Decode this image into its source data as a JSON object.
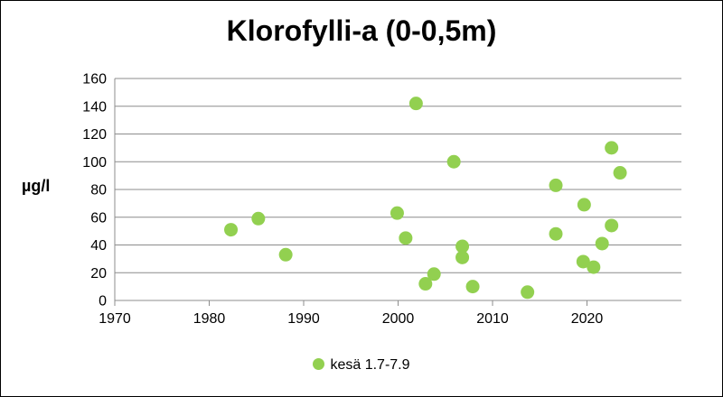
{
  "chart_data": {
    "type": "scatter",
    "title": "Klorofylli-a (0-0,5m)",
    "xlabel": "",
    "ylabel": "µg/l",
    "xlim": [
      1970,
      2030
    ],
    "ylim": [
      0,
      160
    ],
    "xticks": [
      1970,
      1980,
      1990,
      2000,
      2010,
      2020
    ],
    "yticks": [
      0,
      20,
      40,
      60,
      80,
      100,
      120,
      140,
      160
    ],
    "grid": true,
    "legend_position": "bottom",
    "series": [
      {
        "name": "kesä 1.7-7.9",
        "color": "#92d050",
        "points": [
          {
            "x": 1982.3,
            "y": 51
          },
          {
            "x": 1985.2,
            "y": 59
          },
          {
            "x": 1988.1,
            "y": 33
          },
          {
            "x": 1999.9,
            "y": 63
          },
          {
            "x": 2000.8,
            "y": 45
          },
          {
            "x": 2001.9,
            "y": 142
          },
          {
            "x": 2002.9,
            "y": 12
          },
          {
            "x": 2003.8,
            "y": 19
          },
          {
            "x": 2005.9,
            "y": 100
          },
          {
            "x": 2006.8,
            "y": 39
          },
          {
            "x": 2006.8,
            "y": 31
          },
          {
            "x": 2007.9,
            "y": 10
          },
          {
            "x": 2013.7,
            "y": 6
          },
          {
            "x": 2016.7,
            "y": 83
          },
          {
            "x": 2016.7,
            "y": 48
          },
          {
            "x": 2019.7,
            "y": 69
          },
          {
            "x": 2019.6,
            "y": 28
          },
          {
            "x": 2020.7,
            "y": 24
          },
          {
            "x": 2021.6,
            "y": 41
          },
          {
            "x": 2022.6,
            "y": 110
          },
          {
            "x": 2022.6,
            "y": 54
          },
          {
            "x": 2023.5,
            "y": 92
          }
        ]
      }
    ]
  }
}
